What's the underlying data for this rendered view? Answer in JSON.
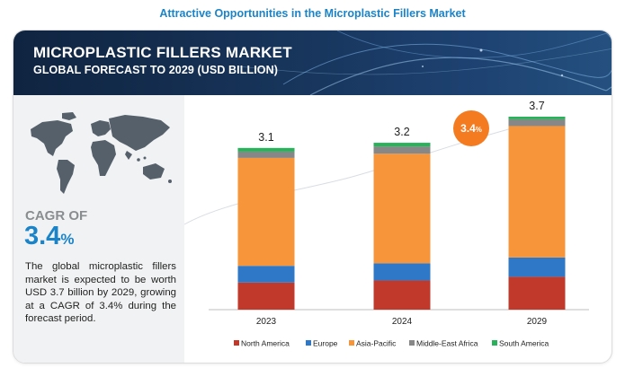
{
  "page_title": "Attractive Opportunities in the Microplastic Fillers Market",
  "banner": {
    "title": "MICROPLASTIC FILLERS MARKET",
    "subtitle": "GLOBAL FORECAST TO 2029 (USD BILLION)"
  },
  "left_panel": {
    "cagr_label": "CAGR OF",
    "cagr_number": "3.4",
    "cagr_unit": "%",
    "description": "The global microplastic fillers market is expected to be worth USD 3.7 billion by 2029, growing at a CAGR of 3.4% during the forecast period.",
    "map_icon": "world-map-icon"
  },
  "cagr_badge": {
    "number": "3.4",
    "unit": "%"
  },
  "colors": {
    "north_america": "#c0392b",
    "europe": "#2e78c7",
    "asia_pacific": "#f7953b",
    "middle_east_africa": "#878787",
    "south_america": "#27b35a",
    "badge": "#f47b20",
    "accent": "#1b84c8"
  },
  "chart_data": {
    "type": "bar",
    "stacked": true,
    "categories": [
      "2023",
      "2024",
      "2029"
    ],
    "totals": [
      "3.1",
      "3.2",
      "3.7"
    ],
    "series": [
      {
        "name": "North America",
        "values": [
          0.52,
          0.56,
          0.63
        ]
      },
      {
        "name": "Europe",
        "values": [
          0.32,
          0.33,
          0.37
        ]
      },
      {
        "name": "Asia-Pacific",
        "values": [
          2.07,
          2.1,
          2.52
        ]
      },
      {
        "name": "Middle-East Africa",
        "values": [
          0.12,
          0.14,
          0.13
        ]
      },
      {
        "name": "South America",
        "values": [
          0.07,
          0.07,
          0.05
        ]
      }
    ],
    "ylim": [
      0,
      3.7
    ],
    "grid": false,
    "legend_position": "bottom"
  }
}
